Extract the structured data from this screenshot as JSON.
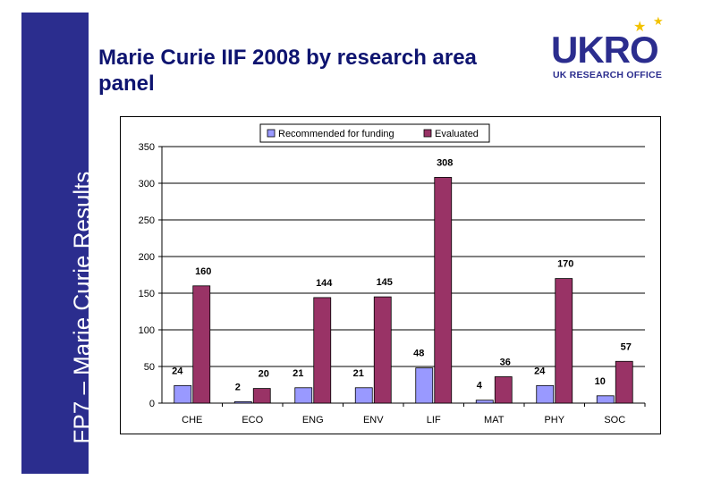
{
  "sidebar": {
    "text": "FP7 – Marie Curie Results",
    "color": "#2b2d8e"
  },
  "title": "Marie Curie IIF 2008 by research area panel",
  "logo": {
    "word": "UKRO",
    "subtitle": "UK RESEARCH OFFICE",
    "star_color": "#f2c200"
  },
  "chart_data": {
    "type": "bar",
    "title": "",
    "xlabel": "",
    "ylabel": "",
    "categories": [
      "CHE",
      "ECO",
      "ENG",
      "ENV",
      "LIF",
      "MAT",
      "PHY",
      "SOC"
    ],
    "series": [
      {
        "name": "Recommended for funding",
        "color": "#9999ff",
        "values": [
          24,
          2,
          21,
          21,
          48,
          4,
          24,
          10
        ]
      },
      {
        "name": "Evaluated",
        "color": "#993366",
        "values": [
          160,
          20,
          144,
          145,
          308,
          36,
          170,
          57
        ]
      }
    ],
    "ylim": [
      0,
      350
    ],
    "yticks": [
      0,
      50,
      100,
      150,
      200,
      250,
      300,
      350
    ],
    "grid": true,
    "legend": "top-center"
  }
}
